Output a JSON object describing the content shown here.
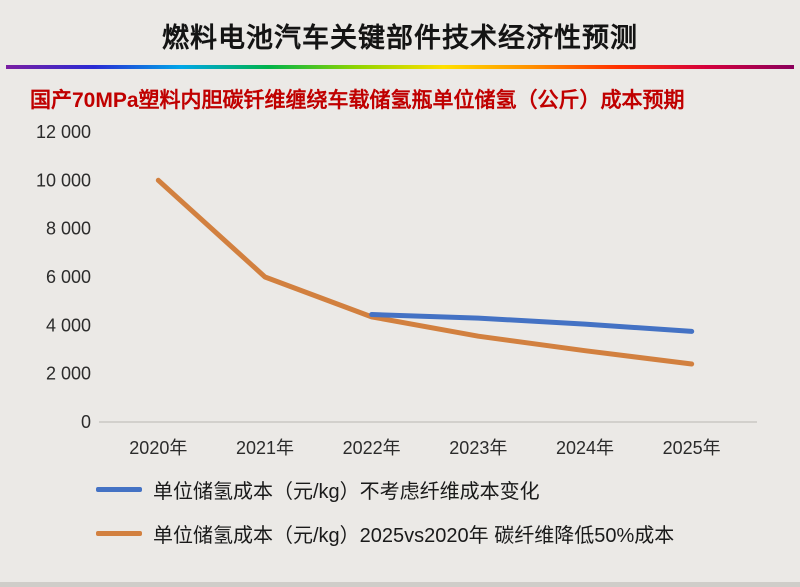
{
  "page": {
    "title": "燃料电池汽车关键部件技术经济性预测",
    "subtitle": "国产70MPa塑料内胆碳钎维缠绕车载储氢瓶单位储氢（公斤）成本预期"
  },
  "colors": {
    "background": "#ebe9e6",
    "title_text": "#141414",
    "subtitle_text": "#c00000",
    "axis_text": "#2b2b2b",
    "series_blue": "#4472c4",
    "series_orange": "#d2803f"
  },
  "chart_data": {
    "type": "line",
    "categories": [
      "2020年",
      "2021年",
      "2022年",
      "2023年",
      "2024年",
      "2025年"
    ],
    "series": [
      {
        "name": "单位储氢成本（元/kg）不考虑纤维成本变化",
        "color": "#4472c4",
        "values": [
          null,
          null,
          4450,
          4300,
          4050,
          3750
        ]
      },
      {
        "name": "单位储氢成本（元/kg）2025vs2020年 碳纤维降低50%成本",
        "color": "#d2803f",
        "values": [
          10000,
          6000,
          4350,
          3550,
          2950,
          2400
        ]
      }
    ],
    "ylim": [
      0,
      12000
    ],
    "yticks": [
      0,
      2000,
      4000,
      6000,
      8000,
      10000,
      12000
    ],
    "ytick_labels": [
      "0",
      "2 000",
      "4 000",
      "6 000",
      "8 000",
      "10 000",
      "12 000"
    ],
    "xlabel": "",
    "ylabel": "",
    "grid": false,
    "legend_position": "bottom-left"
  }
}
